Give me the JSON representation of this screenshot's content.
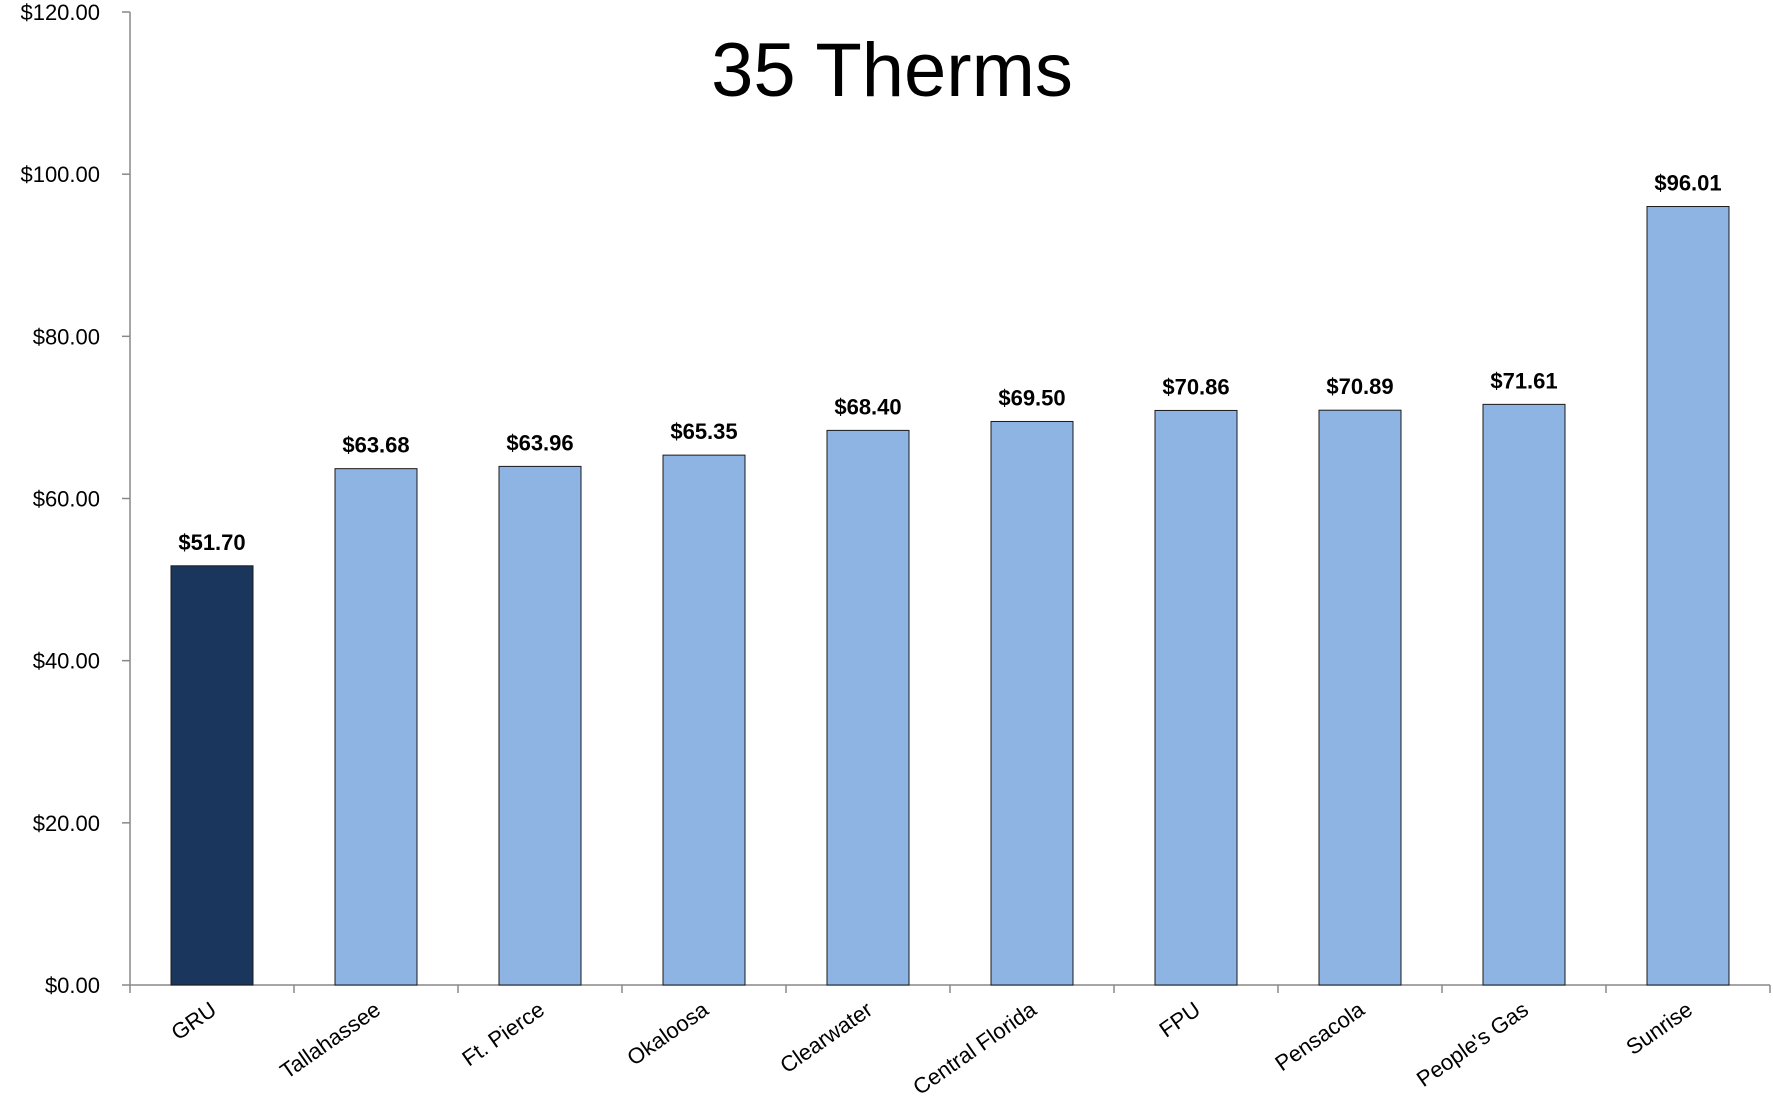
{
  "chart_data": {
    "type": "bar",
    "title": "35 Therms",
    "xlabel": "",
    "ylabel": "",
    "categories": [
      "GRU",
      "Tallahassee",
      "Ft. Pierce",
      "Okaloosa",
      "Clearwater",
      "Central Florida",
      "FPU",
      "Pensacola",
      "People's Gas",
      "Sunrise"
    ],
    "series": [
      {
        "values": [
          51.7,
          63.68,
          63.96,
          65.35,
          68.4,
          69.5,
          70.86,
          70.89,
          71.61,
          96.01
        ]
      }
    ],
    "data_labels": [
      "$51.70",
      "$63.68",
      "$63.96",
      "$65.35",
      "$68.40",
      "$69.50",
      "$70.86",
      "$70.89",
      "$71.61",
      "$96.01"
    ],
    "y_ticks": [
      0,
      20,
      40,
      60,
      80,
      100,
      120
    ],
    "y_tick_labels": [
      "$0.00",
      "$20.00",
      "$40.00",
      "$60.00",
      "$80.00",
      "$100.00",
      "$120.00"
    ],
    "ylim": [
      0,
      120
    ],
    "grid": false,
    "legend": "none",
    "colors": {
      "highlight_bar": "#1b365d",
      "bar": "#8eb4e3",
      "bar_stroke": "#1a1a1a",
      "axis": "#888888"
    }
  }
}
